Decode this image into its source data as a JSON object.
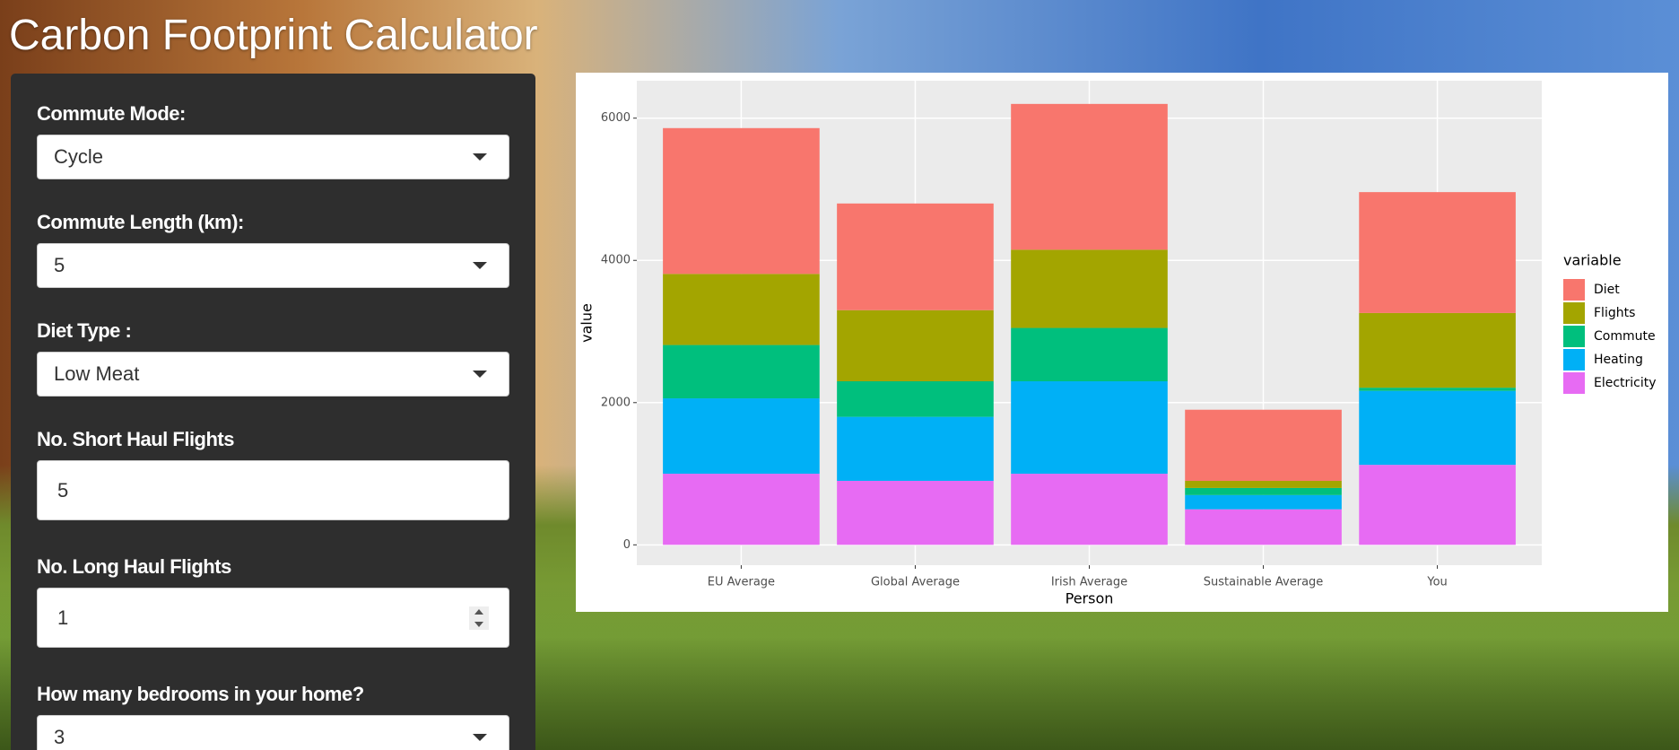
{
  "header": {
    "title": "Carbon Footprint Calculator"
  },
  "form": {
    "fields": [
      {
        "label": "Commute Mode:",
        "value": "Cycle"
      },
      {
        "label": "Commute Length (km):",
        "value": "5"
      },
      {
        "label": "Diet Type :",
        "value": "Low Meat"
      },
      {
        "label": "No. Short Haul Flights",
        "value": "5"
      },
      {
        "label": "No. Long Haul Flights",
        "value": "1"
      },
      {
        "label": "How many bedrooms in your home?",
        "value": "3"
      }
    ]
  },
  "chart_data": {
    "type": "stacked_bar",
    "x_label": "Person",
    "y_label": "value",
    "legend_title": "variable",
    "legend": "right",
    "categories": [
      "EU Average",
      "Global Average",
      "Irish Average",
      "Sustainable Average",
      "You"
    ],
    "series": [
      {
        "name": "Diet",
        "color": "#F8766D",
        "values": [
          2050,
          1500,
          2050,
          1000,
          1700
        ]
      },
      {
        "name": "Flights",
        "color": "#A3A500",
        "values": [
          1000,
          1000,
          1100,
          100,
          1050
        ]
      },
      {
        "name": "Commute",
        "color": "#00BF7D",
        "values": [
          750,
          500,
          750,
          100,
          45
        ]
      },
      {
        "name": "Heating",
        "color": "#00B0F6",
        "values": [
          1060,
          900,
          1300,
          200,
          1040
        ]
      },
      {
        "name": "Electricity",
        "color": "#E76BF3",
        "values": [
          1000,
          900,
          1000,
          500,
          1125
        ]
      }
    ],
    "ylim": [
      -286,
      6526
    ],
    "yticks": [
      0,
      2000,
      4000,
      6000
    ],
    "grid": true
  }
}
